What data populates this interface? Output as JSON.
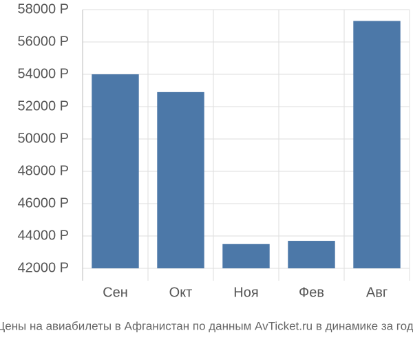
{
  "chart_data": {
    "type": "bar",
    "caption": "Цены на авиабилеты в Афганистан по данным AvTicket.ru в динамике за год.",
    "categories": [
      "Сен",
      "Окт",
      "Ноя",
      "Фев",
      "Авг"
    ],
    "values": [
      54000,
      52900,
      43500,
      43700,
      57300
    ],
    "color": "#4c78a8",
    "ylim": [
      42000,
      58000
    ],
    "yticks": [
      {
        "value": 42000,
        "label": "42000 Р"
      },
      {
        "value": 44000,
        "label": "44000 Р"
      },
      {
        "value": 46000,
        "label": "46000 Р"
      },
      {
        "value": 48000,
        "label": "48000 Р"
      },
      {
        "value": 50000,
        "label": "50000 Р"
      },
      {
        "value": 52000,
        "label": "52000 Р"
      },
      {
        "value": 54000,
        "label": "54000 Р"
      },
      {
        "value": 56000,
        "label": "56000 Р"
      },
      {
        "value": 58000,
        "label": "58000 Р"
      }
    ],
    "grid": true
  }
}
